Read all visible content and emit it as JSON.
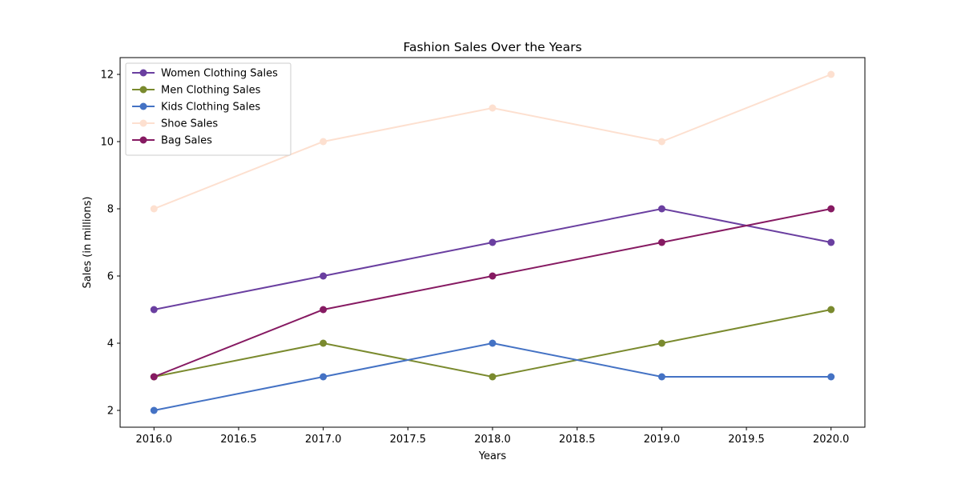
{
  "chart_data": {
    "type": "line",
    "title": "Fashion Sales Over the Years",
    "xlabel": "Years",
    "ylabel": "Sales (in millions)",
    "x": [
      2016,
      2017,
      2018,
      2019,
      2020
    ],
    "xlim": [
      2015.8,
      2020.2
    ],
    "ylim": [
      1.5,
      12.5
    ],
    "xticks": [
      2016.0,
      2016.5,
      2017.0,
      2017.5,
      2018.0,
      2018.5,
      2019.0,
      2019.5,
      2020.0
    ],
    "xtick_labels": [
      "2016.0",
      "2016.5",
      "2017.0",
      "2017.5",
      "2018.0",
      "2018.5",
      "2019.0",
      "2019.5",
      "2020.0"
    ],
    "yticks": [
      2,
      4,
      6,
      8,
      10,
      12
    ],
    "ytick_labels": [
      "2",
      "4",
      "6",
      "8",
      "10",
      "12"
    ],
    "grid": false,
    "legend_position": "top-left",
    "series": [
      {
        "name": "Women Clothing Sales",
        "values": [
          5,
          6,
          7,
          8,
          7
        ],
        "color": "#6a3fa0"
      },
      {
        "name": "Men Clothing Sales",
        "values": [
          3,
          4,
          3,
          4,
          5
        ],
        "color": "#7a8a2e"
      },
      {
        "name": "Kids Clothing Sales",
        "values": [
          2,
          3,
          4,
          3,
          3
        ],
        "color": "#4472c4"
      },
      {
        "name": "Shoe Sales",
        "values": [
          8,
          10,
          11,
          10,
          12
        ],
        "color": "#fde0d0"
      },
      {
        "name": "Bag Sales",
        "values": [
          3,
          5,
          6,
          7,
          8
        ],
        "color": "#861a62"
      }
    ]
  }
}
